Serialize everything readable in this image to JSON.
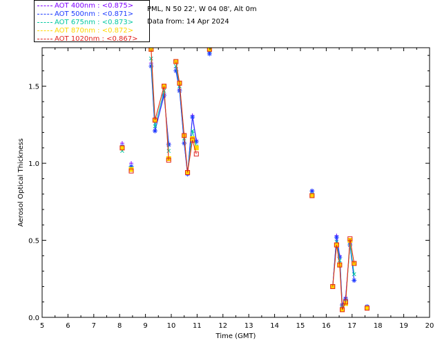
{
  "header": {
    "location": "PML, N 50 22', W 04 08', Alt 0m",
    "date": "Data from: 14 Apr 2024"
  },
  "legend": [
    {
      "label": "AOT  400nm : <0.875>",
      "color": "#7f00ff"
    },
    {
      "label": "AOT  500nm : <0.871>",
      "color": "#1e3cff"
    },
    {
      "label": "AOT  675nm : <0.873>",
      "color": "#00c8a0"
    },
    {
      "label": "AOT  870nm : <0.872>",
      "color": "#ffd700"
    },
    {
      "label": "AOT 1020nm : <0.867>",
      "color": "#e0201c"
    }
  ],
  "chart_data": {
    "type": "line",
    "title": "",
    "xlabel": "Time (GMT)",
    "ylabel": "Aerosol Optical Thickness",
    "xlim": [
      5,
      20
    ],
    "ylim": [
      0,
      1.75
    ],
    "xticks": [
      "5",
      "6",
      "7",
      "8",
      "9",
      "10",
      "11",
      "12",
      "13",
      "14",
      "15",
      "16",
      "17",
      "18",
      "19",
      "20"
    ],
    "yticks": [
      "0.0",
      "0.5",
      "1.0",
      "1.5"
    ],
    "segments": [
      [
        8.1
      ],
      [
        8.45
      ],
      [
        9.22,
        9.37,
        9.72,
        9.9
      ],
      [
        10.18,
        10.32,
        10.5,
        10.63,
        10.82,
        10.97
      ],
      [
        11.48
      ],
      [
        15.45
      ],
      [
        16.25,
        16.4,
        16.52,
        16.62,
        16.75,
        16.92,
        17.08
      ],
      [
        17.58
      ]
    ],
    "series": [
      {
        "name": "AOT 400nm",
        "color": "#7f00ff",
        "x": [
          8.1,
          8.45,
          9.22,
          9.37,
          9.72,
          9.9,
          10.18,
          10.32,
          10.5,
          10.63,
          10.82,
          10.97,
          11.48,
          15.45,
          16.25,
          16.4,
          16.52,
          16.62,
          16.75,
          16.92,
          17.08,
          17.58
        ],
        "y": [
          1.13,
          1.0,
          1.65,
          1.21,
          1.45,
          1.13,
          1.62,
          1.48,
          1.13,
          0.93,
          1.31,
          1.15,
          1.72,
          0.82,
          0.2,
          0.53,
          0.4,
          0.08,
          0.13,
          0.48,
          0.24,
          0.07
        ]
      },
      {
        "name": "AOT 500nm",
        "color": "#1e3cff",
        "x": [
          8.1,
          8.45,
          9.22,
          9.37,
          9.72,
          9.9,
          10.18,
          10.32,
          10.5,
          10.63,
          10.82,
          10.97,
          11.48,
          15.45,
          16.25,
          16.4,
          16.52,
          16.62,
          16.75,
          16.92,
          17.08,
          17.58
        ],
        "y": [
          1.11,
          0.98,
          1.63,
          1.21,
          1.44,
          1.12,
          1.6,
          1.47,
          1.13,
          0.93,
          1.3,
          1.14,
          1.71,
          0.82,
          0.2,
          0.52,
          0.39,
          0.08,
          0.12,
          0.47,
          0.24,
          0.07
        ]
      },
      {
        "name": "AOT 675nm",
        "color": "#00c8a0",
        "x": [
          8.1,
          8.45,
          9.22,
          9.37,
          9.72,
          9.9,
          10.18,
          10.32,
          10.5,
          10.63,
          10.82,
          10.97,
          11.48,
          15.45,
          16.25,
          16.4,
          16.52,
          16.62,
          16.75,
          16.92,
          17.08,
          17.58
        ],
        "y": [
          1.08,
          0.97,
          1.68,
          1.24,
          1.47,
          1.08,
          1.63,
          1.5,
          1.16,
          0.94,
          1.21,
          1.11,
          1.73,
          0.8,
          0.2,
          0.49,
          0.37,
          0.06,
          0.1,
          0.48,
          0.28,
          0.06
        ]
      },
      {
        "name": "AOT 870nm",
        "color": "#ffd700",
        "x": [
          8.1,
          8.45,
          9.22,
          9.37,
          9.72,
          9.9,
          10.18,
          10.32,
          10.5,
          10.63,
          10.82,
          10.97,
          11.48,
          15.45,
          16.25,
          16.4,
          16.52,
          16.62,
          16.75,
          16.92,
          17.08,
          17.58
        ],
        "y": [
          1.1,
          0.96,
          1.74,
          1.28,
          1.5,
          1.03,
          1.66,
          1.52,
          1.18,
          0.94,
          1.16,
          1.1,
          1.74,
          0.79,
          0.2,
          0.47,
          0.34,
          0.05,
          0.09,
          0.5,
          0.35,
          0.06
        ]
      },
      {
        "name": "AOT 1020nm",
        "color": "#e0201c",
        "x": [
          8.1,
          8.45,
          9.22,
          9.37,
          9.72,
          9.9,
          10.18,
          10.32,
          10.5,
          10.63,
          10.82,
          10.97,
          11.48,
          15.45,
          16.25,
          16.4,
          16.52,
          16.62,
          16.75,
          16.92,
          17.08,
          17.58
        ],
        "y": [
          1.1,
          0.95,
          1.74,
          1.28,
          1.5,
          1.02,
          1.66,
          1.52,
          1.18,
          0.94,
          1.15,
          1.06,
          1.74,
          0.79,
          0.2,
          0.47,
          0.34,
          0.05,
          0.1,
          0.51,
          0.35,
          0.06
        ]
      }
    ]
  }
}
